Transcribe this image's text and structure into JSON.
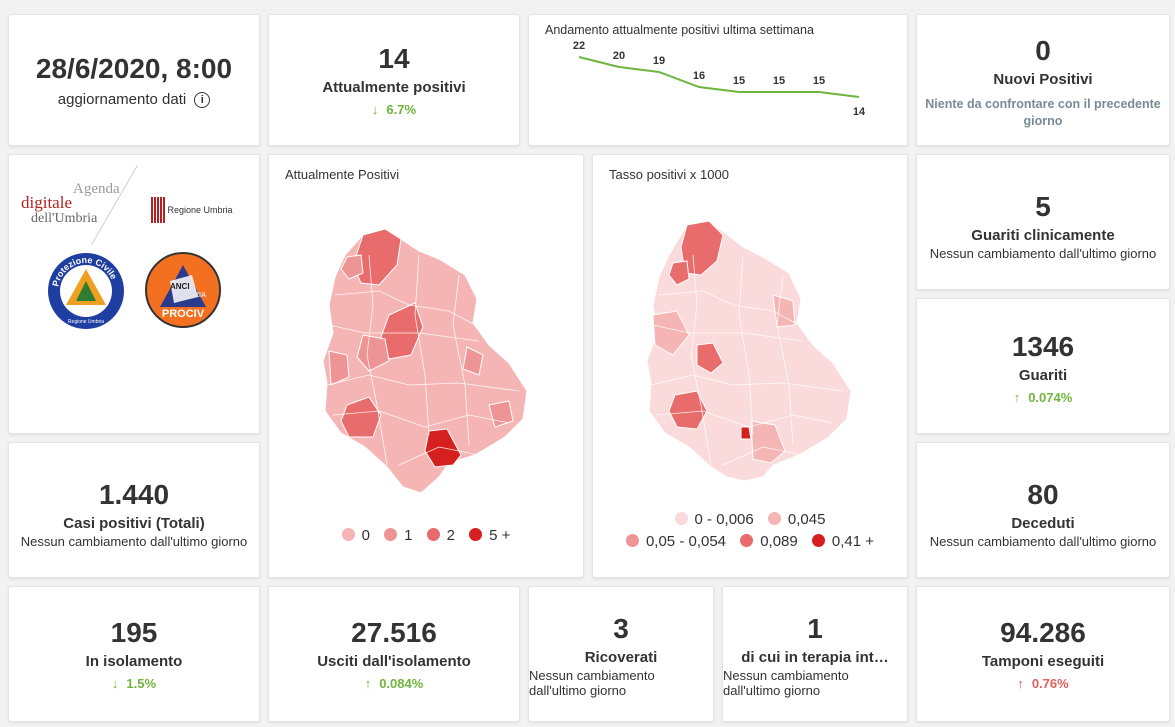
{
  "update": {
    "datetime": "28/6/2020, 8:00",
    "label": "aggiornamento dati",
    "info_icon": "info-icon"
  },
  "attualmente_positivi": {
    "value": "14",
    "label": "Attualmente positivi",
    "trend": "6.7%",
    "trend_dir": "down"
  },
  "weekly": {
    "title": "Andamento attualmente positivi ultima settimana",
    "chart_data": {
      "type": "line",
      "title": "Andamento attualmente positivi ultima settimana",
      "x": [
        1,
        2,
        3,
        4,
        5,
        6,
        7,
        8
      ],
      "values": [
        22,
        20,
        19,
        16,
        15,
        15,
        15,
        14
      ],
      "labels": [
        "22",
        "20",
        "19",
        "16",
        "15",
        "15",
        "15",
        "14"
      ],
      "color": "#6fb53c"
    }
  },
  "nuovi_positivi": {
    "value": "0",
    "label": "Nuovi Positivi",
    "note": "Niente da confrontare con il precedente giorno"
  },
  "logos": {
    "agenda_line1": "Agenda",
    "agenda_line2": "digitale",
    "agenda_line3": "dell'Umbria",
    "regione": "Regione Umbria",
    "protezione_ring": "Protezione Civile",
    "protezione_sub": "Regione Umbria",
    "anci_line1": "ANCI",
    "anci_line2": "UMBRIA",
    "anci_line3": "PROCIV"
  },
  "map1": {
    "title": "Attualmente Positivi",
    "legend": [
      {
        "label": "0",
        "color": "#f5b5b5"
      },
      {
        "label": "1",
        "color": "#ef9494"
      },
      {
        "label": "2",
        "color": "#e86c6c"
      },
      {
        "label": "5 +",
        "color": "#d62020"
      }
    ]
  },
  "map2": {
    "title": "Tasso positivi x 1000",
    "legend_row1": [
      {
        "label": "0 - 0,006",
        "color": "#fadada"
      },
      {
        "label": "0,045",
        "color": "#f5b5b5"
      }
    ],
    "legend_row2": [
      {
        "label": "0,05 - 0,054",
        "color": "#ef9494"
      },
      {
        "label": "0,089",
        "color": "#e86c6c"
      },
      {
        "label": "0,41 +",
        "color": "#d62020"
      }
    ]
  },
  "guariti_clinicamente": {
    "value": "5",
    "label": "Guariti clinicamente",
    "note": "Nessun cambiamento dall'ultimo giorno"
  },
  "guariti": {
    "value": "1346",
    "label": "Guariti",
    "trend": "0.074%",
    "trend_dir": "up"
  },
  "casi_totali": {
    "value": "1.440",
    "label": "Casi positivi (Totali)",
    "note": "Nessun cambiamento dall'ultimo giorno"
  },
  "deceduti": {
    "value": "80",
    "label": "Deceduti",
    "note": "Nessun cambiamento dall'ultimo giorno"
  },
  "isolamento": {
    "value": "195",
    "label": "In isolamento",
    "trend": "1.5%",
    "trend_dir": "down"
  },
  "usciti": {
    "value": "27.516",
    "label": "Usciti dall'isolamento",
    "trend": "0.084%",
    "trend_dir": "up"
  },
  "ricoverati": {
    "value": "3",
    "label": "Ricoverati",
    "note": "Nessun cambiamento dall'ultimo giorno"
  },
  "terapia": {
    "value": "1",
    "label": "di cui in terapia int…",
    "note": "Nessun cambiamento dall'ultimo giorno"
  },
  "tamponi": {
    "value": "94.286",
    "label": "Tamponi eseguiti",
    "trend": "0.76%",
    "trend_dir": "up"
  },
  "arrows": {
    "down": "↓",
    "up": "↑"
  }
}
